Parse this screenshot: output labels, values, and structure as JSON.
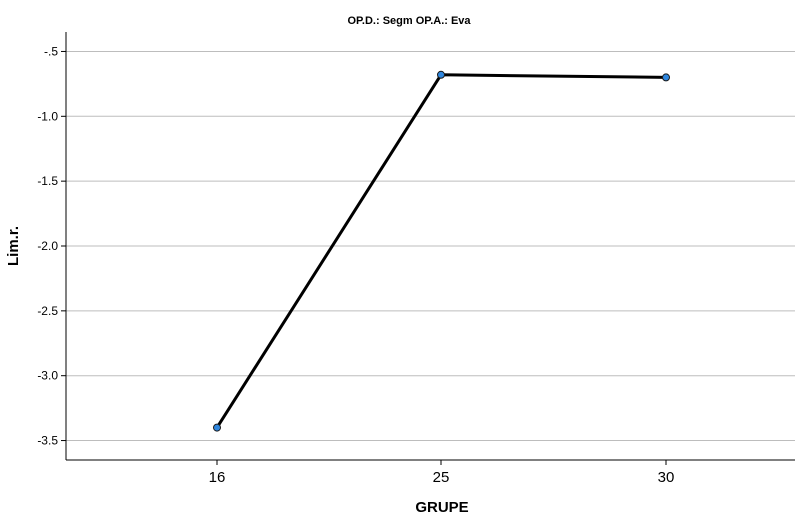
{
  "chart_data": {
    "type": "line",
    "title": "OP.D.: Segm OP.A.: Eva",
    "xlabel": "GRUPE",
    "ylabel": "Lim.r.",
    "categories": [
      "16",
      "25",
      "30"
    ],
    "series": [
      {
        "values": [
          -3.4,
          -0.68,
          -0.7
        ]
      }
    ],
    "ylim": [
      -3.65,
      -0.35
    ],
    "yticks": [
      -0.5,
      -1.0,
      -1.5,
      -2.0,
      -2.5,
      -3.0,
      -3.5
    ],
    "ytick_labels": [
      "-.5",
      "-1.0",
      "-1.5",
      "-2.0",
      "-2.5",
      "-3.0",
      "-3.5"
    ],
    "grid": true,
    "legend": "none",
    "colors": {
      "line": "#000000",
      "marker": "#2e86de"
    }
  }
}
